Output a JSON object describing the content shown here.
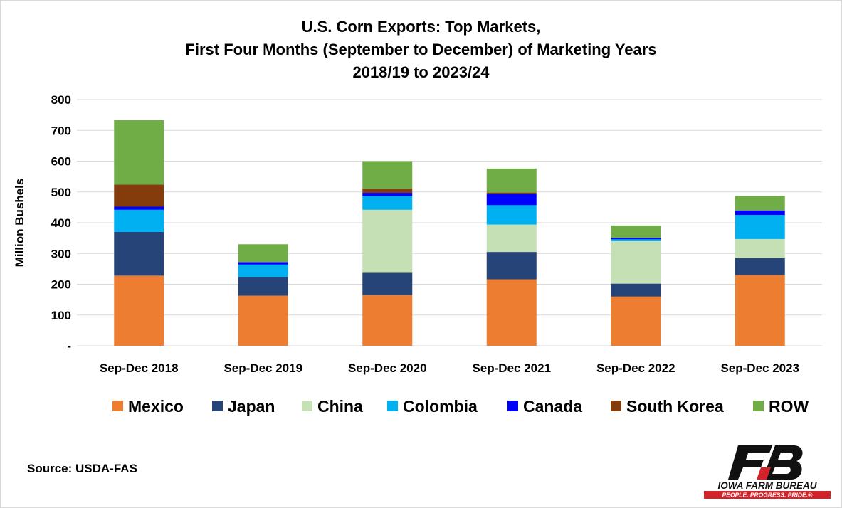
{
  "chart_data": {
    "type": "bar",
    "stacked": true,
    "title_lines": [
      "U.S. Corn Exports: Top Markets,",
      "First Four Months (September to December) of Marketing Years",
      "2018/19 to 2023/24"
    ],
    "xlabel": "",
    "ylabel": "Million Bushels",
    "ylim": [
      0,
      800
    ],
    "yticks": [
      0,
      100,
      200,
      300,
      400,
      500,
      600,
      700,
      800
    ],
    "ytick_labels": [
      "-",
      "100",
      "200",
      "300",
      "400",
      "500",
      "600",
      "700",
      "800"
    ],
    "grid": true,
    "legend_position": "bottom",
    "categories": [
      "Sep-Dec 2018",
      "Sep-Dec 2019",
      "Sep-Dec 2020",
      "Sep-Dec 2021",
      "Sep-Dec 2022",
      "Sep-Dec 2023"
    ],
    "series": [
      {
        "name": "Mexico",
        "color": "#ED7D31",
        "values": [
          228,
          163,
          165,
          216,
          160,
          230
        ]
      },
      {
        "name": "Japan",
        "color": "#264478",
        "values": [
          142,
          60,
          72,
          89,
          42,
          55
        ]
      },
      {
        "name": "China",
        "color": "#C5E0B4",
        "values": [
          0,
          0,
          205,
          89,
          138,
          62
        ]
      },
      {
        "name": "Colombia",
        "color": "#00B0F0",
        "values": [
          72,
          41,
          45,
          63,
          6,
          78
        ]
      },
      {
        "name": "Canada",
        "color": "#0000FF",
        "values": [
          10,
          8,
          10,
          37,
          5,
          15
        ]
      },
      {
        "name": "South Korea",
        "color": "#843C0C",
        "values": [
          72,
          0,
          13,
          4,
          0,
          0
        ]
      },
      {
        "name": "ROW",
        "color": "#70AD47",
        "values": [
          209,
          58,
          90,
          78,
          40,
          47
        ]
      }
    ]
  },
  "source": "Source: USDA-FAS",
  "logo": {
    "mark": "FB",
    "name": "IOWA FARM BUREAU",
    "tagline": "PEOPLE. PROGRESS. PRIDE.®",
    "color": "#D2232A"
  },
  "colors": {
    "grid": "#d9d9d9",
    "text": "#000000"
  }
}
